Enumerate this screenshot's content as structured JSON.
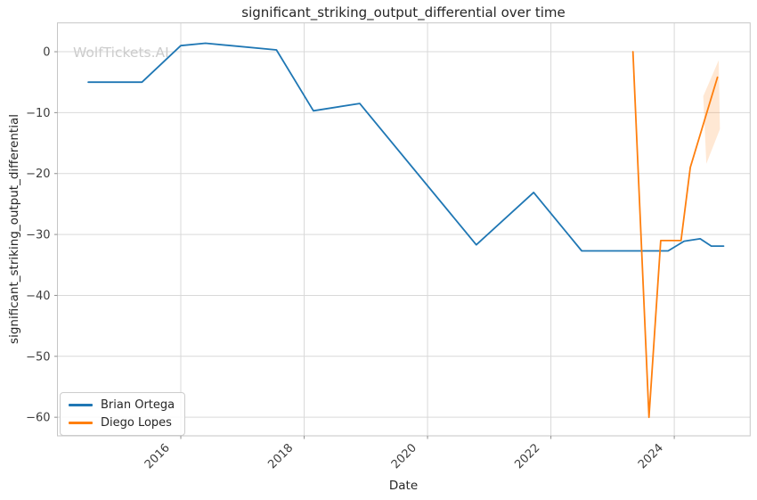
{
  "chart_data": {
    "type": "line",
    "title": "significant_striking_output_differential over time",
    "xlabel": "Date",
    "ylabel": "significant_striking_output_differential",
    "watermark": "WolfTickets.AI",
    "x_tick_values": [
      2016,
      2018,
      2020,
      2022,
      2024
    ],
    "x_tick_labels": [
      "2016",
      "2018",
      "2020",
      "2022",
      "2024"
    ],
    "y_tick_values": [
      0,
      -10,
      -20,
      -30,
      -40,
      -50,
      -60
    ],
    "y_tick_labels": [
      "0",
      "−10",
      "−20",
      "−30",
      "−40",
      "−50",
      "−60"
    ],
    "xlim": [
      2014.0,
      2025.23
    ],
    "ylim": [
      -63.05,
      4.73
    ],
    "grid": true,
    "legend_position": "lower left",
    "series": [
      {
        "name": "Brian Ortega",
        "color": "#1f77b4",
        "x": [
          2014.5,
          2015.37,
          2016.0,
          2016.4,
          2017.55,
          2018.15,
          2018.9,
          2020.79,
          2021.72,
          2022.5,
          2023.9,
          2024.16,
          2024.42,
          2024.6,
          2024.8
        ],
        "y": [
          -5,
          -5,
          1.0,
          1.4,
          0.3,
          -9.7,
          -8.5,
          -31.7,
          -23.1,
          -32.7,
          -32.7,
          -31.1,
          -30.7,
          -31.9,
          -31.9
        ]
      },
      {
        "name": "Diego Lopes",
        "color": "#ff7f0e",
        "x": [
          2023.33,
          2023.59,
          2023.78,
          2024.11,
          2024.26,
          2024.7
        ],
        "y": [
          0,
          -60,
          -31,
          -31,
          -19,
          -4.2
        ]
      }
    ],
    "confidence_band": {
      "series": "Diego Lopes",
      "fill": "#ff7f0e",
      "opacity": 0.18,
      "x": [
        2024.47,
        2024.72,
        2024.74,
        2024.52
      ],
      "y": [
        -7.3,
        -1.4,
        -12.7,
        -18.4
      ]
    },
    "colors": {
      "grid": "#d9d9d9",
      "spine": "#c6c6c6",
      "watermark": "#cccccc",
      "text": "#262626",
      "tick_text": "#3d3d3d"
    }
  }
}
